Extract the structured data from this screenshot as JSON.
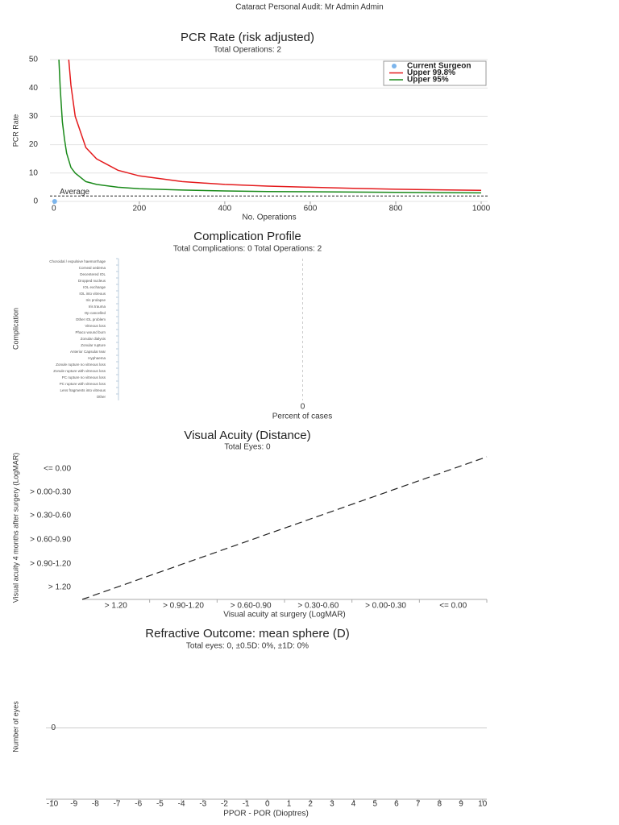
{
  "page_title": "Cataract Personal Audit: Mr Admin Admin",
  "chart_data": [
    {
      "type": "line",
      "title": "PCR Rate (risk adjusted)",
      "subtitle": "Total Operations: 2",
      "xlabel": "No. Operations",
      "ylabel": "PCR Rate",
      "xlim": [
        -9,
        1015
      ],
      "ylim": [
        0,
        50
      ],
      "xticks": [
        0,
        200,
        400,
        600,
        800,
        1000
      ],
      "yticks": [
        0,
        10,
        20,
        30,
        40,
        50
      ],
      "grid": true,
      "legend": "upper right",
      "average": 1.9,
      "average_label": "Average",
      "series": [
        {
          "name": "Current Surgeon",
          "style": "scatter",
          "color": "#7cb5ec",
          "x": [
            2
          ],
          "values": [
            0
          ]
        },
        {
          "name": "Upper 99.8%",
          "style": "line",
          "color": "#e41a1c",
          "x": [
            35,
            40,
            50,
            75,
            100,
            150,
            200,
            300,
            400,
            500,
            600,
            700,
            800,
            900,
            1000
          ],
          "values": [
            50,
            41,
            30,
            19,
            15,
            11,
            9,
            7,
            6,
            5.4,
            5,
            4.6,
            4.3,
            4.1,
            3.9
          ]
        },
        {
          "name": "Upper 95%",
          "style": "line",
          "color": "#1a8a1a",
          "x": [
            12,
            15,
            20,
            25,
            30,
            40,
            50,
            75,
            100,
            150,
            200,
            300,
            400,
            500,
            600,
            700,
            800,
            900,
            1000
          ],
          "values": [
            50,
            40,
            28,
            22,
            17,
            12,
            10,
            7,
            6,
            5,
            4.5,
            4,
            3.7,
            3.5,
            3.4,
            3.3,
            3.2,
            3.1,
            3.0
          ]
        }
      ]
    },
    {
      "type": "barh",
      "title": "Complication Profile",
      "subtitle": "Total Complications: 0 Total Operations: 2",
      "xlabel": "Percent of cases",
      "ylabel": "Complication",
      "xlim": [
        -1,
        1
      ],
      "xticks": [
        0
      ],
      "categories": [
        "Choroidal / expulsive haemorrhage",
        "Corneal oedema",
        "Decentered IOL",
        "Dropped nucleus",
        "IOL exchange",
        "IOL into vitreous",
        "Iris prolapse",
        "Iris trauma",
        "Op cancelled",
        "Other IOL problem",
        "Vitreous loss",
        "Phaco wound burn",
        "Zonular dialysis",
        "Zonular rupture",
        "Anterior Capsular tear",
        "Hyphaema",
        "Zonule rupture no vitreous loss",
        "Zonule rupture with vitreous loss",
        "PC rupture no vitreous loss",
        "PC rupture with vitreous loss",
        "Lens fragments into vitreous",
        "Other"
      ],
      "values": [
        0,
        0,
        0,
        0,
        0,
        0,
        0,
        0,
        0,
        0,
        0,
        0,
        0,
        0,
        0,
        0,
        0,
        0,
        0,
        0,
        0,
        0
      ],
      "color": "#7cb5ec"
    },
    {
      "type": "scatter",
      "title": "Visual Acuity (Distance)",
      "subtitle": "Total Eyes: 0",
      "xlabel": "Visual acuity at surgery (LogMAR)",
      "ylabel": "Visual acuity 4 months after surgery (LogMAR)",
      "x_categories": [
        "> 1.20",
        "> 0.90-1.20",
        "> 0.60-0.90",
        "> 0.30-0.60",
        "> 0.00-0.30",
        "<= 0.00"
      ],
      "y_categories": [
        "> 1.20",
        "> 0.90-1.20",
        "> 0.60-0.90",
        "> 0.30-0.60",
        "> 0.00-0.30",
        "<= 0.00"
      ]
    },
    {
      "type": "bar",
      "title": "Refractive Outcome: mean sphere (D)",
      "subtitle": "Total eyes: 0, ±0.5D: 0%, ±1D: 0%",
      "xlabel": "PPOR - POR (Dioptres)",
      "ylabel": "Number of eyes",
      "xlim": [
        -10.3,
        10.2
      ],
      "xticks": [
        -10,
        -9,
        -8,
        -7,
        -6,
        -5,
        -4,
        -3,
        -2,
        -1,
        0,
        1,
        2,
        3,
        4,
        5,
        6,
        7,
        8,
        9,
        10
      ],
      "ylim": [
        -1,
        1
      ],
      "yticks": [
        0
      ]
    }
  ]
}
